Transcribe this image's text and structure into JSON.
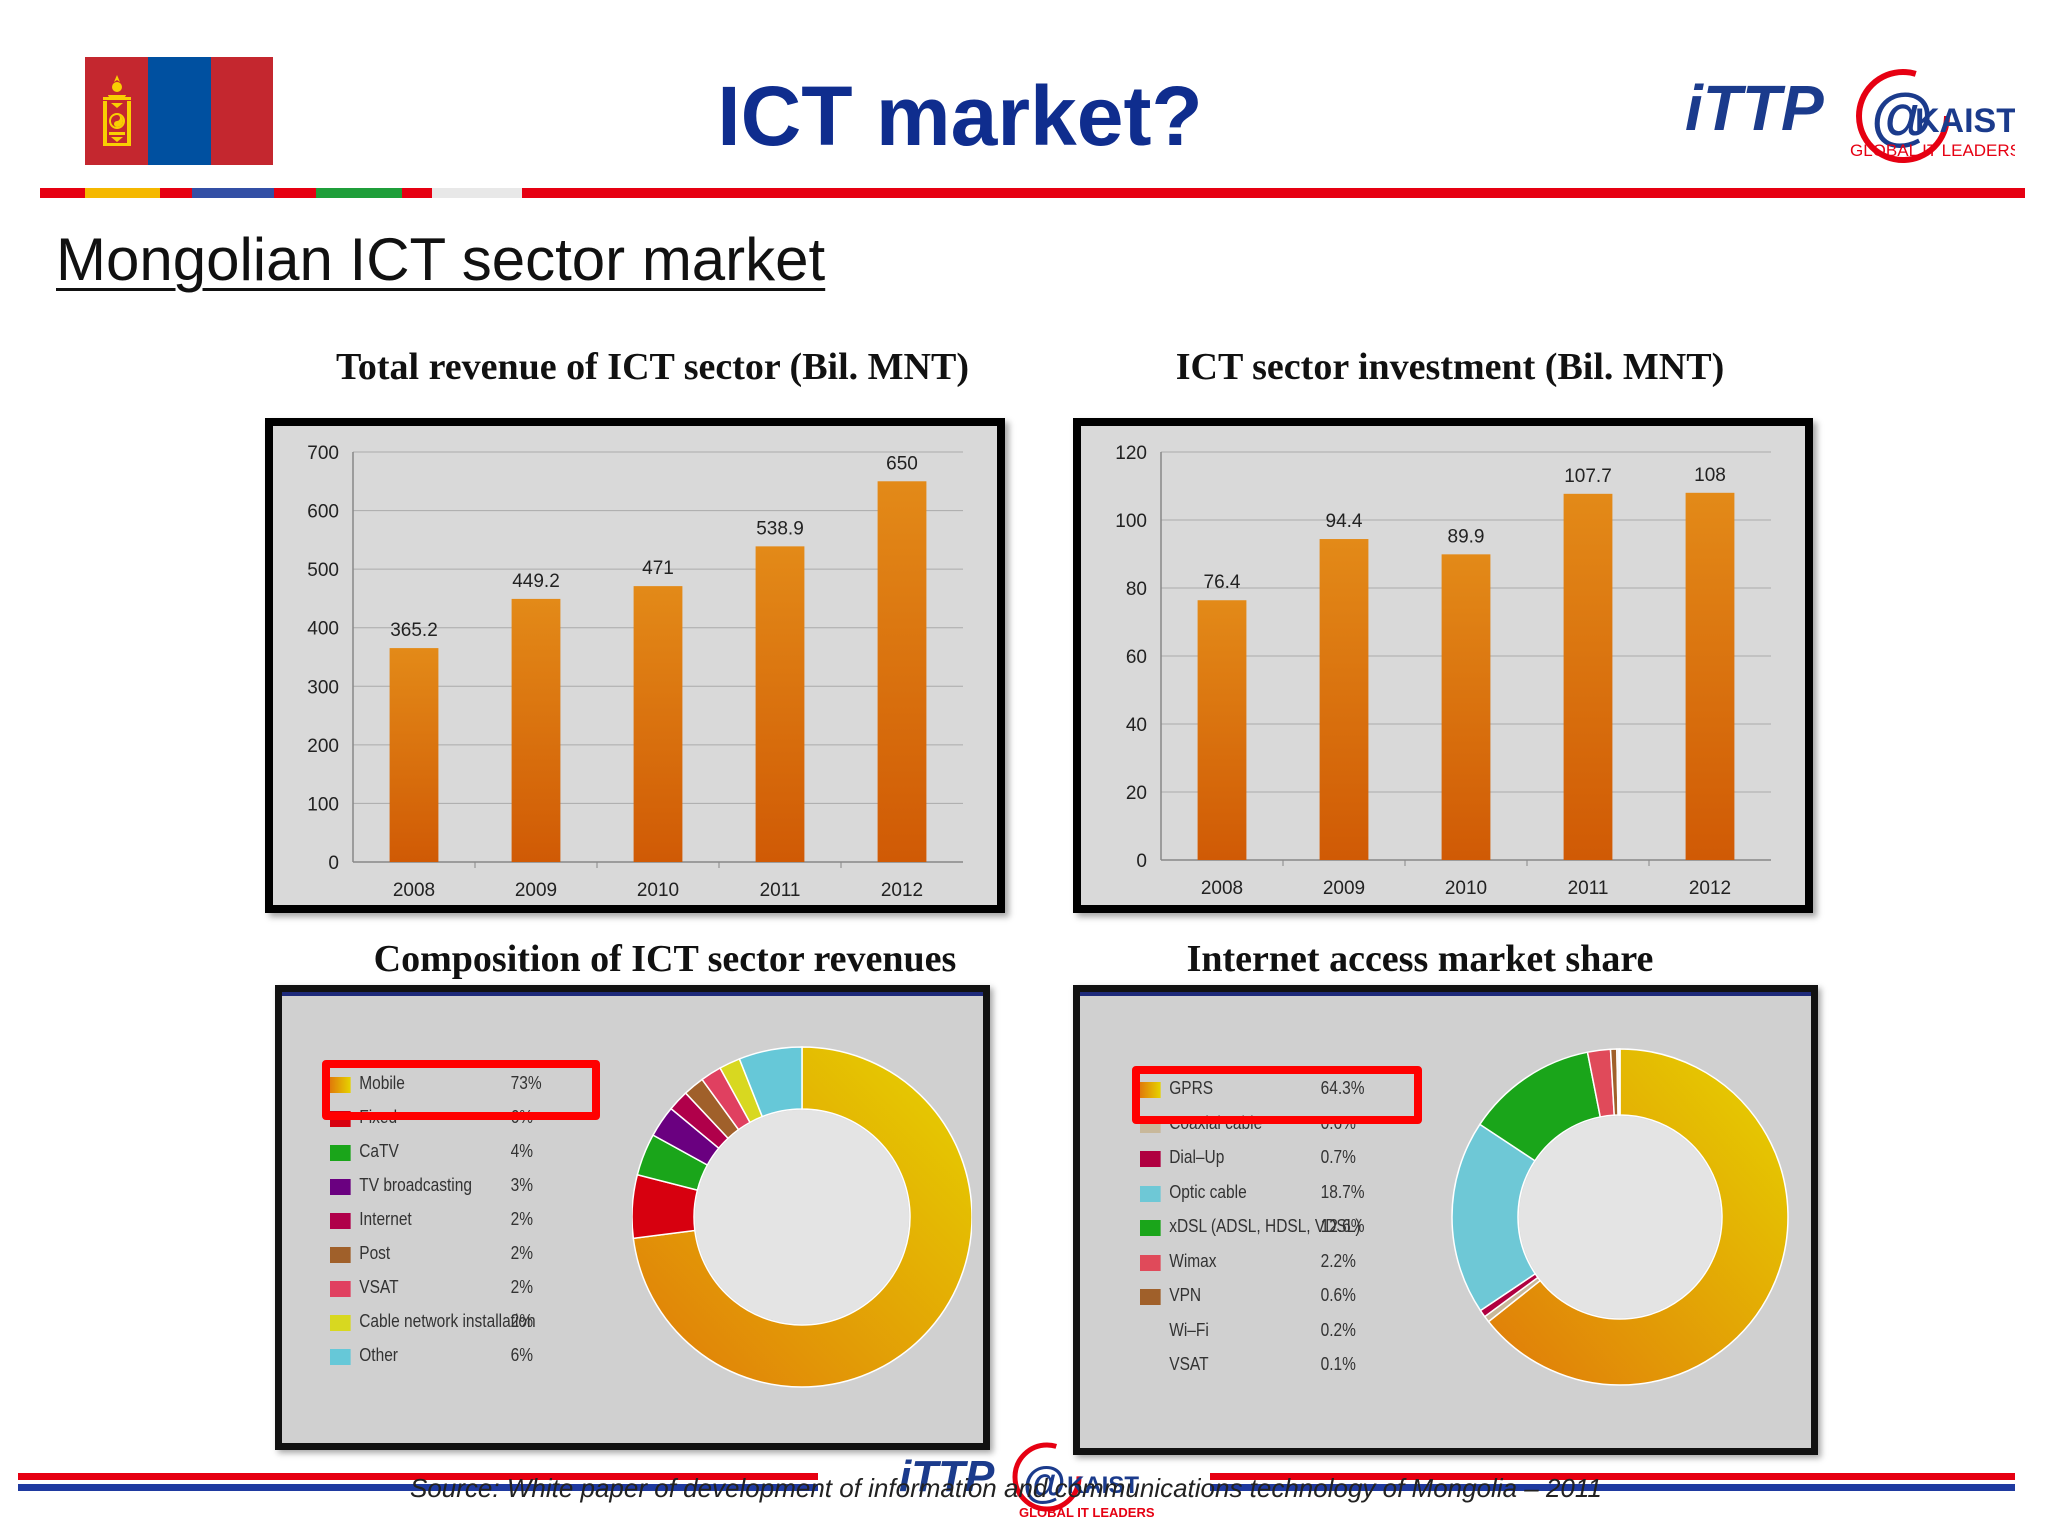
{
  "header": {
    "title": "ICT market?",
    "logo_text": "iTTP",
    "logo_at": "@",
    "logo_kaist": "KAIST",
    "logo_sub": "GLOBAL IT LEADERS"
  },
  "subtitle": "Mongolian ICT sector market",
  "footer": {
    "source": "Source: White paper of development of information and communications technology of Mongolia – 2011"
  },
  "colors": {
    "title_blue": "#0f2d8e",
    "brand_red": "#e60012",
    "flag_red": "#c4272f",
    "flag_blue": "#0050a0",
    "flag_gold": "#f9cf02",
    "bar_orange": "#d96e0a",
    "highlight_red": "#ff0000"
  },
  "chart_data": [
    {
      "type": "bar",
      "title": "Total revenue of ICT sector (Bil. MNT)",
      "categories": [
        "2008",
        "2009",
        "2010",
        "2011",
        "2012"
      ],
      "values": [
        365.2,
        449.2,
        471,
        538.9,
        650
      ],
      "value_labels": [
        "365.2",
        "449.2",
        "471",
        "538.9",
        "650"
      ],
      "ylim": [
        0,
        700
      ],
      "yticks": [
        0,
        100,
        200,
        300,
        400,
        500,
        600,
        700
      ],
      "grid": true
    },
    {
      "type": "bar",
      "title": "ICT sector investment (Bil. MNT)",
      "categories": [
        "2008",
        "2009",
        "2010",
        "2011",
        "2012"
      ],
      "values": [
        76.4,
        94.4,
        89.9,
        107.7,
        108
      ],
      "value_labels": [
        "76.4",
        "94.4",
        "89.9",
        "107.7",
        "108"
      ],
      "ylim": [
        0,
        120
      ],
      "yticks": [
        0,
        20,
        40,
        60,
        80,
        100,
        120
      ],
      "grid": true
    },
    {
      "type": "pie",
      "donut": true,
      "title": "Composition of ICT sector revenues",
      "legend_placement": "left",
      "slices": [
        {
          "name": "Mobile",
          "label": "73%",
          "value": 73,
          "color": "#e3b400"
        },
        {
          "name": "Fixed",
          "label": "6%",
          "value": 6,
          "color": "#d7000f"
        },
        {
          "name": "CaTV",
          "label": "4%",
          "value": 4,
          "color": "#1aa51a"
        },
        {
          "name": "TV broadcasting",
          "label": "3%",
          "value": 3,
          "color": "#6a0080"
        },
        {
          "name": "Internet",
          "label": "2%",
          "value": 2,
          "color": "#b0004a"
        },
        {
          "name": "Post",
          "label": "2%",
          "value": 2,
          "color": "#a0602a"
        },
        {
          "name": "VSAT",
          "label": "2%",
          "value": 2,
          "color": "#e04060"
        },
        {
          "name": "Cable network installation",
          "label": "2%",
          "value": 2,
          "color": "#d8d820"
        },
        {
          "name": "Other",
          "label": "6%",
          "value": 6,
          "color": "#66c8d8"
        }
      ],
      "highlighted": "Mobile"
    },
    {
      "type": "pie",
      "donut": true,
      "title": "Internet access market share",
      "legend_placement": "left",
      "slices": [
        {
          "name": "GPRS",
          "label": "64.3%",
          "value": 64.3,
          "color": "#e3b400"
        },
        {
          "name": "Coaxial cable",
          "label": "0.6%",
          "value": 0.6,
          "color": "#c8b89a"
        },
        {
          "name": "Dial–Up",
          "label": "0.7%",
          "value": 0.7,
          "color": "#b00040"
        },
        {
          "name": "Optic cable",
          "label": "18.7%",
          "value": 18.7,
          "color": "#6ec8d6"
        },
        {
          "name": "xDSL (ADSL, HDSL, VDSL)",
          "label": "12.6%",
          "value": 12.6,
          "color": "#1aa51a"
        },
        {
          "name": "Wimax",
          "label": "2.2%",
          "value": 2.2,
          "color": "#e04a5a"
        },
        {
          "name": "VPN",
          "label": "0.6%",
          "value": 0.6,
          "color": "#a0602a"
        },
        {
          "name": "Wi–Fi",
          "label": "0.2%",
          "value": 0.2,
          "color": "#e8e8e8"
        },
        {
          "name": "VSAT",
          "label": "0.1%",
          "value": 0.1,
          "color": "#d8d8d8"
        }
      ],
      "highlighted": "GPRS"
    }
  ]
}
